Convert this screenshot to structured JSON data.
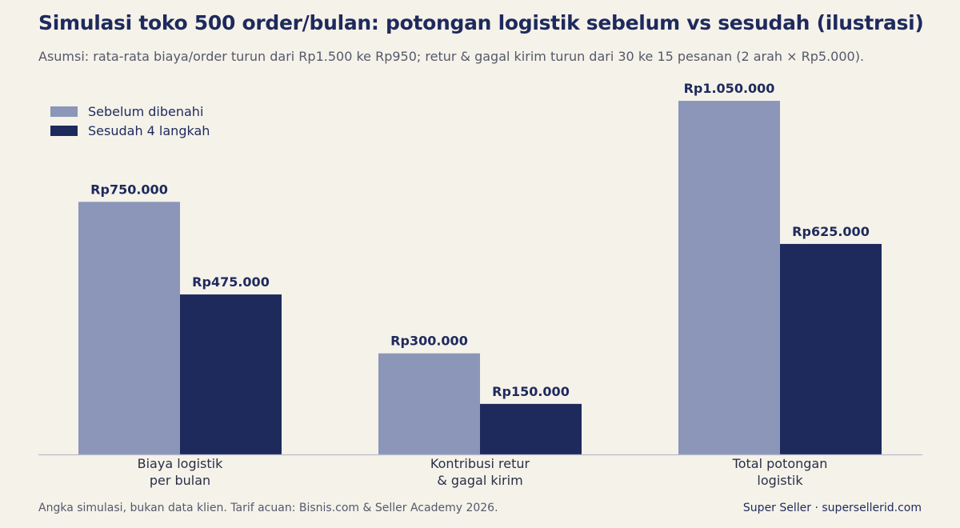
{
  "title": "Simulasi toko 500 order/bulan: potongan logistik sebelum vs sesudah (ilustrasi)",
  "subtitle": "Asumsi: rata-rata biaya/order turun dari Rp1.500 ke Rp950; retur & gagal kirim turun dari 30 ke 15 pesanan (2 arah × Rp5.000).",
  "footer": {
    "note": "Angka simulasi, bukan data klien. Tarif acuan: Bisnis.com & Seller Academy 2026.",
    "brand": "Super Seller · supersellerid.com"
  },
  "chart_data": {
    "type": "bar",
    "categories": [
      [
        "Biaya logistik",
        "per bulan"
      ],
      [
        "Kontribusi retur",
        "& gagal kirim"
      ],
      [
        "Total potongan",
        "logistik"
      ]
    ],
    "series": [
      {
        "name": "Sebelum dibenahi",
        "color": "#8b96b9",
        "values": [
          750000,
          300000,
          1050000
        ],
        "labels": [
          "Rp750.000",
          "Rp300.000",
          "Rp1.050.000"
        ]
      },
      {
        "name": "Sesudah 4 langkah",
        "color": "#1e2a5c",
        "values": [
          475000,
          150000,
          625000
        ],
        "labels": [
          "Rp475.000",
          "Rp150.000",
          "Rp625.000"
        ]
      }
    ],
    "ylim": [
      0,
      1100000
    ],
    "grid": false,
    "legend": "top-left"
  }
}
